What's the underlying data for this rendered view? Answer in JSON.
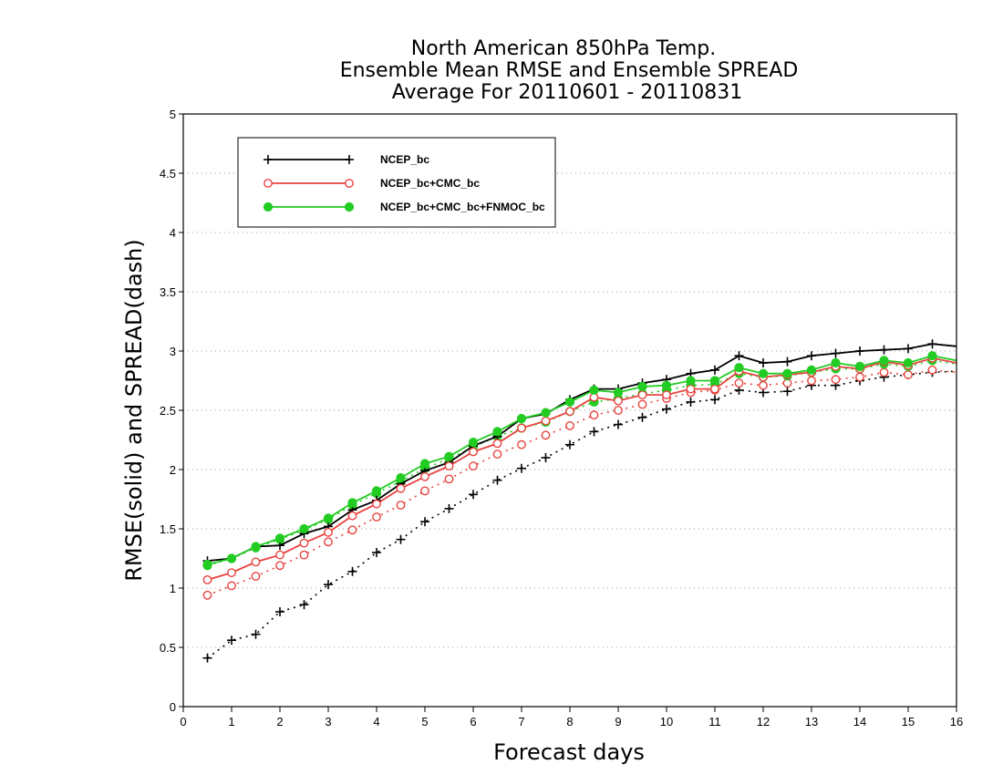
{
  "chart_data": {
    "type": "line",
    "title_lines": [
      "North American 850hPa Temp.",
      "Ensemble Mean RMSE and Ensemble SPREAD",
      "Average For 20110601 - 20110831"
    ],
    "xlabel": "Forecast days",
    "ylabel": "RMSE(solid) and SPREAD(dash)",
    "xlim": [
      0,
      16
    ],
    "ylim": [
      0,
      5
    ],
    "xticks": [
      "0",
      "1",
      "2",
      "3",
      "4",
      "5",
      "6",
      "7",
      "8",
      "9",
      "10",
      "11",
      "12",
      "13",
      "14",
      "15",
      "16"
    ],
    "yticks": [
      "0",
      "0.5",
      "1",
      "1.5",
      "2",
      "2.5",
      "3",
      "3.5",
      "4",
      "4.5",
      "5"
    ],
    "grid": "horizontal dotted",
    "legend_position": "top-left",
    "x": [
      0.5,
      1,
      1.5,
      2,
      2.5,
      3,
      3.5,
      4,
      4.5,
      5,
      5.5,
      6,
      6.5,
      7,
      7.5,
      8,
      8.5,
      9,
      9.5,
      10,
      10.5,
      11,
      11.5,
      12,
      12.5,
      13,
      13.5,
      14,
      14.5,
      15,
      15.5,
      16
    ],
    "series": [
      {
        "name": "NCEP_bc",
        "color": "#000000",
        "marker": "plus",
        "rmse": [
          1.23,
          1.25,
          1.35,
          1.36,
          1.46,
          1.52,
          1.66,
          1.74,
          1.88,
          1.99,
          2.06,
          2.2,
          2.28,
          2.43,
          2.47,
          2.59,
          2.68,
          2.68,
          2.73,
          2.76,
          2.81,
          2.84,
          2.96,
          2.9,
          2.91,
          2.96,
          2.98,
          3.0,
          3.01,
          3.02,
          3.06,
          3.04
        ],
        "spread": [
          0.41,
          0.56,
          0.61,
          0.8,
          0.86,
          1.03,
          1.14,
          1.3,
          1.41,
          1.56,
          1.67,
          1.79,
          1.91,
          2.01,
          2.1,
          2.21,
          2.32,
          2.38,
          2.44,
          2.51,
          2.57,
          2.59,
          2.67,
          2.65,
          2.66,
          2.71,
          2.71,
          2.75,
          2.78,
          2.8,
          2.82,
          2.83
        ]
      },
      {
        "name": "NCEP_bc+CMC_bc",
        "color": "#e8433f",
        "marker": "open-circle",
        "rmse": [
          1.07,
          1.13,
          1.22,
          1.28,
          1.38,
          1.47,
          1.61,
          1.71,
          1.84,
          1.94,
          2.03,
          2.15,
          2.22,
          2.35,
          2.41,
          2.49,
          2.61,
          2.58,
          2.63,
          2.63,
          2.68,
          2.68,
          2.83,
          2.78,
          2.8,
          2.82,
          2.87,
          2.85,
          2.91,
          2.88,
          2.94,
          2.9
        ],
        "spread": [
          0.94,
          1.02,
          1.1,
          1.19,
          1.28,
          1.39,
          1.49,
          1.6,
          1.7,
          1.82,
          1.92,
          2.03,
          2.13,
          2.21,
          2.29,
          2.37,
          2.46,
          2.5,
          2.55,
          2.6,
          2.65,
          2.67,
          2.73,
          2.71,
          2.73,
          2.75,
          2.76,
          2.78,
          2.82,
          2.8,
          2.84,
          2.82
        ]
      },
      {
        "name": "NCEP_bc+CMC_bc+FNMOC_bc",
        "color": "#22cc22",
        "marker": "filled-circle",
        "rmse": [
          1.2,
          1.25,
          1.35,
          1.42,
          1.5,
          1.59,
          1.72,
          1.82,
          1.93,
          2.05,
          2.11,
          2.23,
          2.32,
          2.43,
          2.48,
          2.57,
          2.67,
          2.65,
          2.7,
          2.71,
          2.75,
          2.75,
          2.86,
          2.81,
          2.81,
          2.84,
          2.9,
          2.87,
          2.92,
          2.9,
          2.96,
          2.92
        ],
        "spread": [
          1.19,
          1.25,
          1.34,
          1.41,
          1.49,
          1.58,
          1.7,
          1.8,
          1.9,
          2.01,
          2.09,
          2.19,
          2.28,
          2.35,
          2.4,
          2.49,
          2.57,
          2.6,
          2.64,
          2.67,
          2.71,
          2.72,
          2.81,
          2.78,
          2.79,
          2.82,
          2.85,
          2.85,
          2.89,
          2.87,
          2.92,
          2.89
        ]
      }
    ]
  }
}
